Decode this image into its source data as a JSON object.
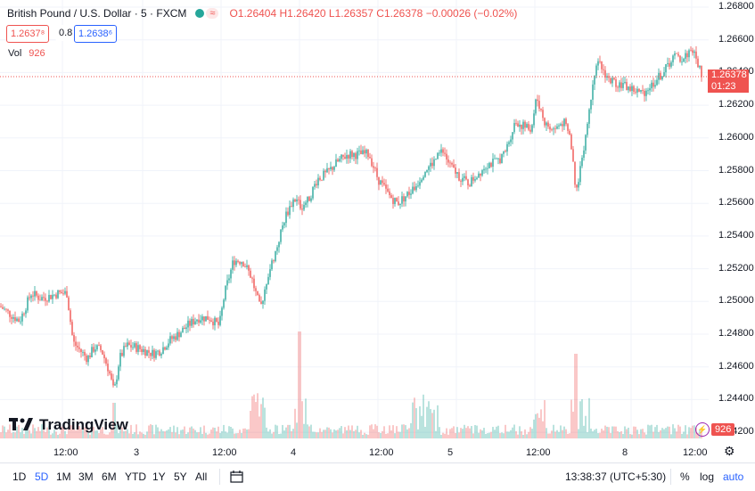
{
  "legend": {
    "title": "British Pound / U.S. Dollar · 5 · FXCM",
    "wave_icon": "≈",
    "open": "O1.26404",
    "high": "H1.26420",
    "low": "L1.26357",
    "close": "C1.26378",
    "change": "−0.00026 (−0.02%)"
  },
  "quote": {
    "bid": "1.2637⁸",
    "spread": "0.8",
    "ask": "1.2638⁶"
  },
  "volume_label": {
    "label": "Vol",
    "value": "926"
  },
  "last_price": {
    "price": "1.26378",
    "countdown": "01:23"
  },
  "branding": {
    "logo_text": "TradingView"
  },
  "vol_badge": {
    "value": "926"
  },
  "price_axis": [
    "1.26800",
    "1.26600",
    "1.26400",
    "1.26200",
    "1.26000",
    "1.25800",
    "1.25600",
    "1.25400",
    "1.25200",
    "1.25000",
    "1.24800",
    "1.24600",
    "1.24400",
    "1.24200"
  ],
  "time_axis": [
    "12:00",
    "3",
    "12:00",
    "4",
    "12:00",
    "5",
    "12:00",
    "8",
    "12:00"
  ],
  "toolbar": {
    "ranges": [
      "1D",
      "5D",
      "1M",
      "3M",
      "6M",
      "YTD",
      "1Y",
      "5Y",
      "All"
    ],
    "active_range": "5D",
    "clock": "13:38:37 (UTC+5:30)",
    "percent_label": "%",
    "log_label": "log",
    "auto_label": "auto"
  },
  "colors": {
    "up": "#26a69a",
    "down": "#ef5350",
    "accent": "#2962ff"
  },
  "chart_data": {
    "type": "candlestick",
    "symbol": "British Pound / U.S. Dollar",
    "interval": "5",
    "ylim": [
      1.242,
      1.268
    ],
    "close_path": [
      [
        0,
        1.2497
      ],
      [
        12,
        1.2492
      ],
      [
        22,
        1.2488
      ],
      [
        35,
        1.2505
      ],
      [
        45,
        1.2502
      ],
      [
        55,
        1.2503
      ],
      [
        65,
        1.2505
      ],
      [
        75,
        1.2505
      ],
      [
        82,
        1.2475
      ],
      [
        90,
        1.247
      ],
      [
        98,
        1.2465
      ],
      [
        106,
        1.2472
      ],
      [
        114,
        1.247
      ],
      [
        122,
        1.2458
      ],
      [
        128,
        1.2444
      ],
      [
        134,
        1.2465
      ],
      [
        142,
        1.2473
      ],
      [
        152,
        1.2472
      ],
      [
        162,
        1.247
      ],
      [
        172,
        1.2468
      ],
      [
        180,
        1.247
      ],
      [
        190,
        1.2476
      ],
      [
        200,
        1.248
      ],
      [
        210,
        1.2485
      ],
      [
        222,
        1.249
      ],
      [
        235,
        1.249
      ],
      [
        246,
        1.2485
      ],
      [
        252,
        1.2505
      ],
      [
        262,
        1.2525
      ],
      [
        272,
        1.2525
      ],
      [
        282,
        1.2515
      ],
      [
        292,
        1.2495
      ],
      [
        300,
        1.2515
      ],
      [
        310,
        1.2532
      ],
      [
        320,
        1.2552
      ],
      [
        330,
        1.2563
      ],
      [
        338,
        1.2558
      ],
      [
        346,
        1.2562
      ],
      [
        356,
        1.2575
      ],
      [
        366,
        1.2578
      ],
      [
        378,
        1.2585
      ],
      [
        390,
        1.259
      ],
      [
        402,
        1.259
      ],
      [
        414,
        1.259
      ],
      [
        424,
        1.2575
      ],
      [
        436,
        1.2565
      ],
      [
        446,
        1.256
      ],
      [
        456,
        1.2565
      ],
      [
        466,
        1.257
      ],
      [
        476,
        1.258
      ],
      [
        486,
        1.2585
      ],
      [
        496,
        1.2592
      ],
      [
        506,
        1.2582
      ],
      [
        516,
        1.2576
      ],
      [
        526,
        1.2572
      ],
      [
        536,
        1.2578
      ],
      [
        546,
        1.2584
      ],
      [
        556,
        1.2585
      ],
      [
        566,
        1.259
      ],
      [
        578,
        1.261
      ],
      [
        588,
        1.2607
      ],
      [
        596,
        1.2605
      ],
      [
        602,
        1.2625
      ],
      [
        612,
        1.2608
      ],
      [
        622,
        1.2605
      ],
      [
        632,
        1.261
      ],
      [
        640,
        1.26
      ],
      [
        646,
        1.2565
      ],
      [
        652,
        1.2585
      ],
      [
        660,
        1.2612
      ],
      [
        666,
        1.264
      ],
      [
        672,
        1.2645
      ],
      [
        684,
        1.2635
      ],
      [
        696,
        1.2633
      ],
      [
        708,
        1.263
      ],
      [
        720,
        1.2627
      ],
      [
        732,
        1.2633
      ],
      [
        744,
        1.264
      ],
      [
        756,
        1.265
      ],
      [
        766,
        1.2648
      ],
      [
        776,
        1.2655
      ],
      [
        783,
        1.2645
      ],
      [
        788,
        1.2638
      ]
    ],
    "volume_peaks": [
      {
        "time": "Day 4",
        "value_rel": 0.8
      },
      {
        "time": "Day 8",
        "value_rel": 0.75
      }
    ]
  }
}
